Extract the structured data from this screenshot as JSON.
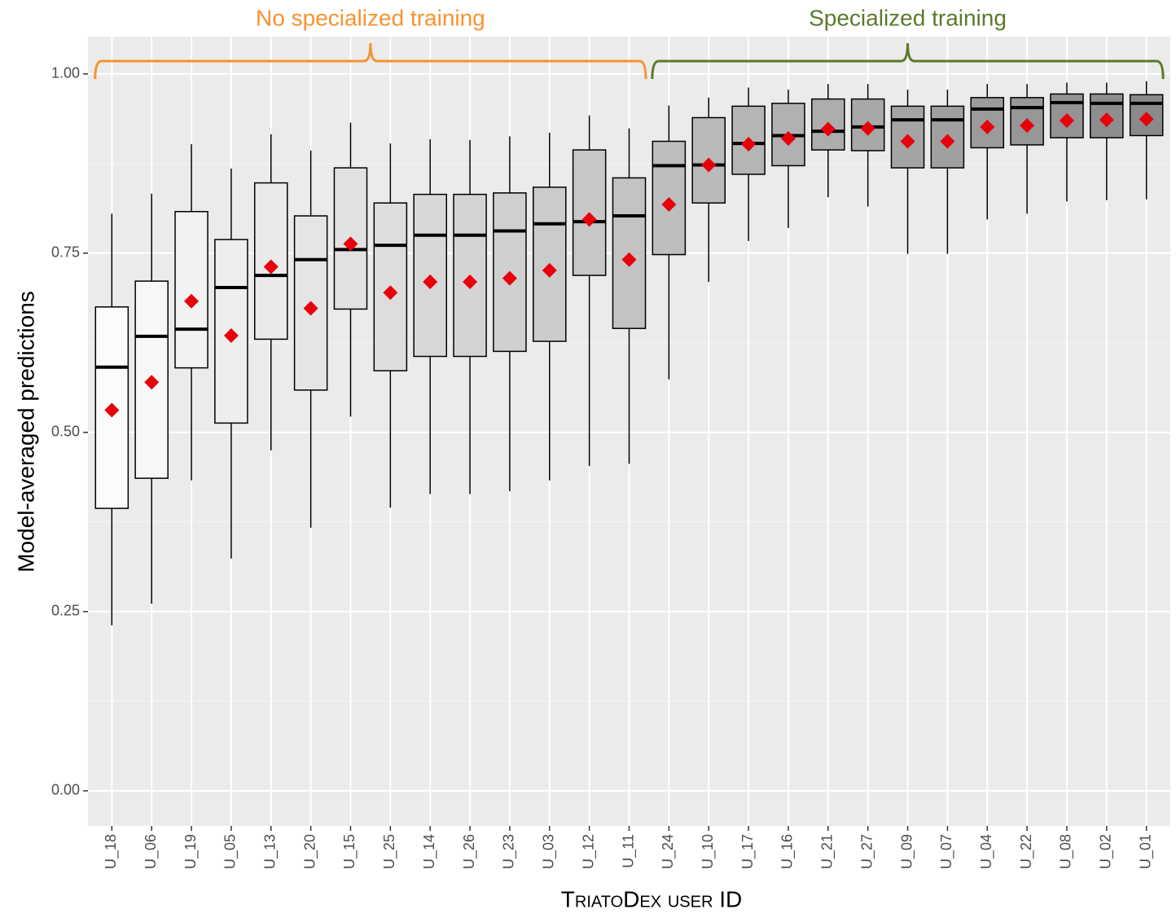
{
  "chart_data": {
    "type": "boxplot",
    "y_label": "Model-averaged predictions",
    "x_label": "TriatoDex user ID",
    "categories": [
      "U_18",
      "U_06",
      "U_19",
      "U_05",
      "U_13",
      "U_20",
      "U_15",
      "U_25",
      "U_14",
      "U_26",
      "U_23",
      "U_03",
      "U_12",
      "U_11",
      "U_24",
      "U_10",
      "U_17",
      "U_16",
      "U_21",
      "U_27",
      "U_09",
      "U_07",
      "U_04",
      "U_22",
      "U_08",
      "U_02",
      "U_01"
    ],
    "low": [
      0.231,
      0.261,
      0.433,
      0.324,
      0.475,
      0.367,
      0.522,
      0.395,
      0.414,
      0.414,
      0.418,
      0.433,
      0.453,
      0.456,
      0.574,
      0.71,
      0.767,
      0.785,
      0.828,
      0.815,
      0.749,
      0.749,
      0.797,
      0.805,
      0.822,
      0.824,
      0.825
    ],
    "q1": [
      0.394,
      0.436,
      0.59,
      0.513,
      0.63,
      0.559,
      0.672,
      0.586,
      0.606,
      0.606,
      0.613,
      0.627,
      0.719,
      0.645,
      0.748,
      0.82,
      0.86,
      0.872,
      0.894,
      0.893,
      0.869,
      0.869,
      0.897,
      0.901,
      0.911,
      0.911,
      0.914
    ],
    "median": [
      0.591,
      0.634,
      0.644,
      0.702,
      0.719,
      0.741,
      0.755,
      0.761,
      0.775,
      0.775,
      0.781,
      0.791,
      0.794,
      0.802,
      0.872,
      0.873,
      0.903,
      0.914,
      0.92,
      0.926,
      0.936,
      0.936,
      0.951,
      0.953,
      0.96,
      0.959,
      0.959
    ],
    "q3": [
      0.675,
      0.711,
      0.808,
      0.769,
      0.848,
      0.802,
      0.869,
      0.82,
      0.832,
      0.832,
      0.834,
      0.842,
      0.894,
      0.855,
      0.906,
      0.939,
      0.955,
      0.959,
      0.965,
      0.965,
      0.955,
      0.955,
      0.967,
      0.967,
      0.972,
      0.972,
      0.971
    ],
    "high": [
      0.805,
      0.833,
      0.902,
      0.868,
      0.916,
      0.893,
      0.932,
      0.903,
      0.909,
      0.908,
      0.913,
      0.918,
      0.942,
      0.924,
      0.956,
      0.967,
      0.981,
      0.978,
      0.986,
      0.986,
      0.978,
      0.978,
      0.986,
      0.986,
      0.988,
      0.988,
      0.99
    ],
    "mean": [
      0.531,
      0.57,
      0.683,
      0.635,
      0.731,
      0.673,
      0.763,
      0.695,
      0.71,
      0.71,
      0.715,
      0.726,
      0.797,
      0.741,
      0.818,
      0.873,
      0.902,
      0.91,
      0.923,
      0.924,
      0.906,
      0.906,
      0.926,
      0.928,
      0.935,
      0.936,
      0.937
    ],
    "mean_color": "#e8000b",
    "box_fill_range": [
      "#fbfbfb",
      "#8a8a8a"
    ],
    "ylim": [
      -0.049,
      1.052
    ],
    "yticks": [
      {
        "value": 0,
        "label": "0.00"
      },
      {
        "value": 0.25,
        "label": "0.25"
      },
      {
        "value": 0.5,
        "label": "0.50"
      },
      {
        "value": 0.75,
        "label": "0.75"
      },
      {
        "value": 1,
        "label": "1.00"
      }
    ],
    "grid": true,
    "groups": [
      {
        "label": "No specialized training",
        "color": "#f7922d",
        "start": "U_18",
        "end": "U_11"
      },
      {
        "label": "Specialized training",
        "color": "#5a7a2a",
        "start": "U_24",
        "end": "U_01"
      }
    ]
  }
}
